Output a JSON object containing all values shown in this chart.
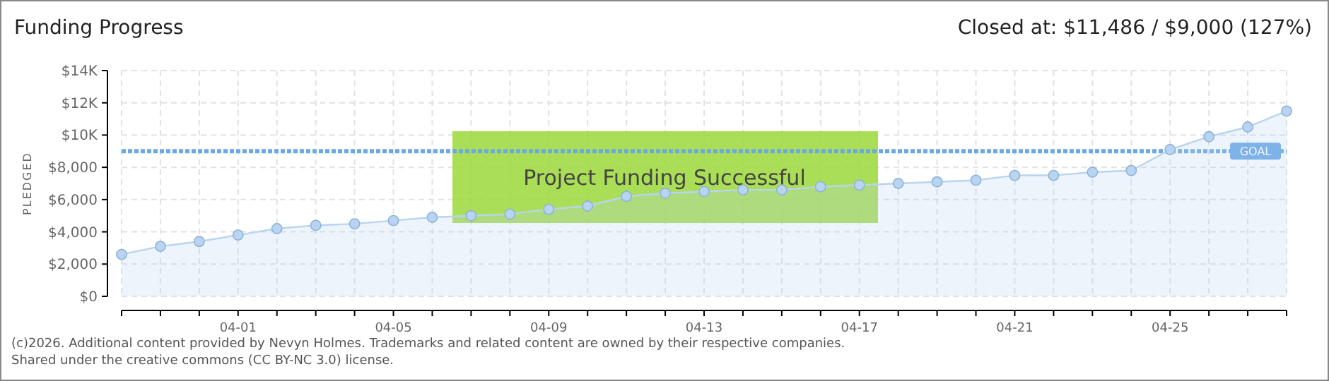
{
  "chart_data": {
    "type": "area",
    "title": "Funding Progress",
    "subtitle": "Closed at: $11,486 / $9,000 (127%)",
    "ylabel": "PLEDGED",
    "categories": [
      null,
      null,
      null,
      "04-01",
      null,
      null,
      null,
      "04-05",
      null,
      null,
      null,
      "04-09",
      null,
      null,
      null,
      "04-13",
      null,
      null,
      null,
      "04-17",
      null,
      null,
      null,
      "04-21",
      null,
      null,
      null,
      "04-25",
      null,
      null,
      null
    ],
    "series": [
      {
        "color": "#b8d4f0",
        "values": [
          2600,
          3100,
          3400,
          3800,
          4200,
          4400,
          4500,
          4700,
          4900,
          5000,
          5100,
          5400,
          5600,
          6200,
          6400,
          6500,
          6600,
          6600,
          6800,
          6900,
          7000,
          7100,
          7200,
          7500,
          7500,
          7700,
          7800,
          9100,
          9900,
          10500,
          11486
        ]
      }
    ],
    "ylim": [
      0,
      14000
    ],
    "yticks": [
      {
        "value": 0,
        "label": "$0"
      },
      {
        "value": 2000,
        "label": "$2,000"
      },
      {
        "value": 4000,
        "label": "$4,000"
      },
      {
        "value": 6000,
        "label": "$6,000"
      },
      {
        "value": 8000,
        "label": "$8,000"
      },
      {
        "value": 10000,
        "label": "$10K"
      },
      {
        "value": 12000,
        "label": "$12K"
      },
      {
        "value": 14000,
        "label": "$14K"
      }
    ],
    "grid": true,
    "marker": "circle",
    "ref_lines": [
      {
        "axis": "y",
        "value": 9000,
        "label": "GOAL",
        "color": "#6aa8e6",
        "line_style": "dotted"
      }
    ],
    "annotations": [
      "Project Funding Successful",
      "(c)2026. Additional content provided by Nevyn Holmes. Trademarks and related content are owned by their respective companies.",
      "Shared under the creative commons (CC BY-NC 3.0) license."
    ]
  }
}
